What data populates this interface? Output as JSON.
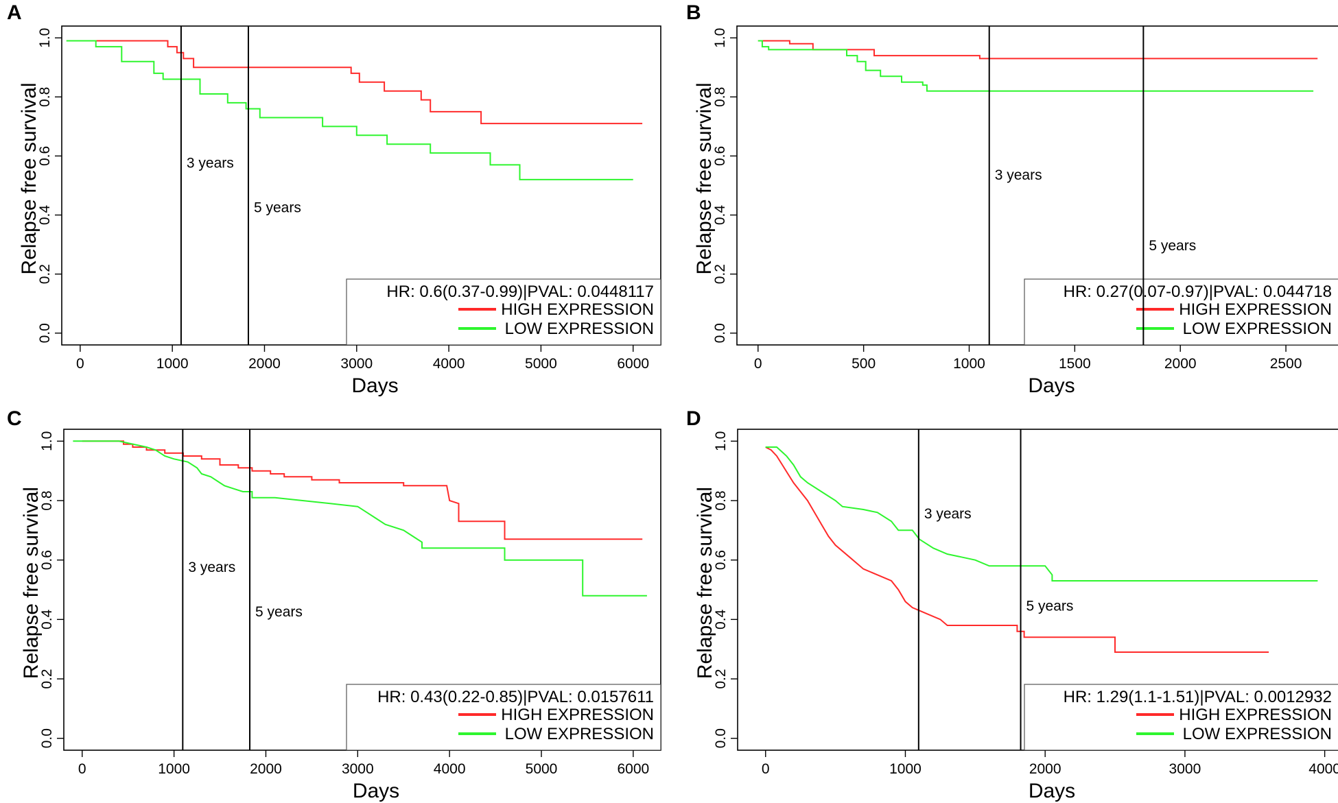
{
  "chart_data": [
    {
      "panel": "A",
      "type": "line",
      "xlabel": "Days",
      "ylabel": "Relapse free survival",
      "xlim": [
        -200,
        6300
      ],
      "ylim": [
        -0.04,
        1.04
      ],
      "xticks": [
        0,
        1000,
        2000,
        3000,
        4000,
        5000,
        6000
      ],
      "yticks": [
        0.0,
        0.2,
        0.4,
        0.6,
        0.8,
        1.0
      ],
      "markers": [
        {
          "x": 1095,
          "label": "3 years",
          "label_y": 0.56
        },
        {
          "x": 1825,
          "label": "5 years",
          "label_y": 0.41
        }
      ],
      "legend": {
        "stat": "HR: 0.6(0.37-0.99)|PVAL: 0.0448117",
        "position": "bottom-right"
      },
      "series": [
        {
          "name": "HIGH EXPRESSION",
          "color": "#ff2a2a",
          "points": [
            [
              0,
              0.99
            ],
            [
              950,
              0.99
            ],
            [
              950,
              0.97
            ],
            [
              1050,
              0.97
            ],
            [
              1050,
              0.95
            ],
            [
              1120,
              0.95
            ],
            [
              1120,
              0.93
            ],
            [
              1230,
              0.93
            ],
            [
              1230,
              0.9
            ],
            [
              2940,
              0.9
            ],
            [
              2940,
              0.88
            ],
            [
              3030,
              0.88
            ],
            [
              3030,
              0.85
            ],
            [
              3300,
              0.85
            ],
            [
              3300,
              0.82
            ],
            [
              3700,
              0.82
            ],
            [
              3700,
              0.79
            ],
            [
              3800,
              0.79
            ],
            [
              3800,
              0.75
            ],
            [
              4350,
              0.75
            ],
            [
              4350,
              0.71
            ],
            [
              6100,
              0.71
            ]
          ]
        },
        {
          "name": "LOW EXPRESSION",
          "color": "#2ef52e",
          "points": [
            [
              -150,
              0.99
            ],
            [
              170,
              0.99
            ],
            [
              170,
              0.97
            ],
            [
              450,
              0.97
            ],
            [
              450,
              0.92
            ],
            [
              800,
              0.92
            ],
            [
              800,
              0.88
            ],
            [
              900,
              0.88
            ],
            [
              900,
              0.86
            ],
            [
              1300,
              0.86
            ],
            [
              1300,
              0.81
            ],
            [
              1600,
              0.81
            ],
            [
              1600,
              0.78
            ],
            [
              1800,
              0.78
            ],
            [
              1800,
              0.76
            ],
            [
              1950,
              0.76
            ],
            [
              1950,
              0.73
            ],
            [
              2630,
              0.73
            ],
            [
              2630,
              0.7
            ],
            [
              3000,
              0.7
            ],
            [
              3000,
              0.67
            ],
            [
              3330,
              0.67
            ],
            [
              3330,
              0.64
            ],
            [
              3800,
              0.64
            ],
            [
              3800,
              0.61
            ],
            [
              4450,
              0.61
            ],
            [
              4450,
              0.57
            ],
            [
              4770,
              0.57
            ],
            [
              4770,
              0.52
            ],
            [
              6000,
              0.52
            ]
          ]
        }
      ]
    },
    {
      "panel": "B",
      "type": "line",
      "xlabel": "Days",
      "ylabel": "Relapse free survival",
      "xlim": [
        -100,
        2750
      ],
      "ylim": [
        -0.04,
        1.04
      ],
      "xticks": [
        0,
        500,
        1000,
        1500,
        2000,
        2500
      ],
      "yticks": [
        0.0,
        0.2,
        0.4,
        0.6,
        0.8,
        1.0
      ],
      "markers": [
        {
          "x": 1095,
          "label": "3 years",
          "label_y": 0.52
        },
        {
          "x": 1825,
          "label": "5 years",
          "label_y": 0.28
        }
      ],
      "legend": {
        "stat": "HR: 0.27(0.07-0.97)|PVAL: 0.044718",
        "position": "bottom-right"
      },
      "series": [
        {
          "name": "HIGH EXPRESSION",
          "color": "#ff2a2a",
          "points": [
            [
              0,
              0.99
            ],
            [
              150,
              0.99
            ],
            [
              150,
              0.98
            ],
            [
              260,
              0.98
            ],
            [
              260,
              0.96
            ],
            [
              550,
              0.96
            ],
            [
              550,
              0.94
            ],
            [
              1050,
              0.94
            ],
            [
              1050,
              0.93
            ],
            [
              2650,
              0.93
            ]
          ]
        },
        {
          "name": "LOW EXPRESSION",
          "color": "#2ef52e",
          "points": [
            [
              0,
              0.99
            ],
            [
              20,
              0.99
            ],
            [
              20,
              0.97
            ],
            [
              50,
              0.97
            ],
            [
              50,
              0.96
            ],
            [
              420,
              0.96
            ],
            [
              420,
              0.94
            ],
            [
              470,
              0.94
            ],
            [
              470,
              0.92
            ],
            [
              510,
              0.92
            ],
            [
              510,
              0.89
            ],
            [
              580,
              0.89
            ],
            [
              580,
              0.87
            ],
            [
              680,
              0.87
            ],
            [
              680,
              0.85
            ],
            [
              780,
              0.85
            ],
            [
              780,
              0.84
            ],
            [
              800,
              0.84
            ],
            [
              800,
              0.82
            ],
            [
              2630,
              0.82
            ]
          ]
        }
      ]
    },
    {
      "panel": "C",
      "type": "line",
      "xlabel": "Days",
      "ylabel": "Relapse free survival",
      "xlim": [
        -200,
        6300
      ],
      "ylim": [
        -0.04,
        1.04
      ],
      "xticks": [
        0,
        1000,
        2000,
        3000,
        4000,
        5000,
        6000
      ],
      "yticks": [
        0.0,
        0.2,
        0.4,
        0.6,
        0.8,
        1.0
      ],
      "markers": [
        {
          "x": 1095,
          "label": "3 years",
          "label_y": 0.56
        },
        {
          "x": 1825,
          "label": "5 years",
          "label_y": 0.41
        }
      ],
      "legend": {
        "stat": "HR: 0.43(0.22-0.85)|PVAL: 0.0157611",
        "position": "bottom-right"
      },
      "series": [
        {
          "name": "HIGH EXPRESSION",
          "color": "#ff2a2a",
          "points": [
            [
              0,
              1.0
            ],
            [
              450,
              1.0
            ],
            [
              450,
              0.99
            ],
            [
              550,
              0.99
            ],
            [
              550,
              0.98
            ],
            [
              700,
              0.98
            ],
            [
              700,
              0.97
            ],
            [
              900,
              0.97
            ],
            [
              900,
              0.96
            ],
            [
              1100,
              0.96
            ],
            [
              1100,
              0.95
            ],
            [
              1300,
              0.95
            ],
            [
              1300,
              0.94
            ],
            [
              1500,
              0.94
            ],
            [
              1500,
              0.92
            ],
            [
              1700,
              0.92
            ],
            [
              1700,
              0.91
            ],
            [
              1850,
              0.91
            ],
            [
              1850,
              0.9
            ],
            [
              2050,
              0.9
            ],
            [
              2050,
              0.89
            ],
            [
              2200,
              0.89
            ],
            [
              2200,
              0.88
            ],
            [
              2500,
              0.88
            ],
            [
              2500,
              0.87
            ],
            [
              2800,
              0.87
            ],
            [
              2800,
              0.86
            ],
            [
              3500,
              0.86
            ],
            [
              3500,
              0.85
            ],
            [
              3970,
              0.85
            ],
            [
              4000,
              0.8
            ],
            [
              4100,
              0.79
            ],
            [
              4100,
              0.73
            ],
            [
              4600,
              0.73
            ],
            [
              4600,
              0.67
            ],
            [
              6100,
              0.67
            ]
          ]
        },
        {
          "name": "LOW EXPRESSION",
          "color": "#2ef52e",
          "points": [
            [
              -100,
              1.0
            ],
            [
              400,
              1.0
            ],
            [
              700,
              0.98
            ],
            [
              800,
              0.97
            ],
            [
              900,
              0.95
            ],
            [
              1000,
              0.94
            ],
            [
              1150,
              0.93
            ],
            [
              1250,
              0.91
            ],
            [
              1300,
              0.89
            ],
            [
              1400,
              0.88
            ],
            [
              1500,
              0.86
            ],
            [
              1550,
              0.85
            ],
            [
              1650,
              0.84
            ],
            [
              1750,
              0.83
            ],
            [
              1850,
              0.83
            ],
            [
              1850,
              0.81
            ],
            [
              2100,
              0.81
            ],
            [
              2400,
              0.8
            ],
            [
              2700,
              0.79
            ],
            [
              3000,
              0.78
            ],
            [
              3100,
              0.76
            ],
            [
              3200,
              0.74
            ],
            [
              3300,
              0.72
            ],
            [
              3500,
              0.7
            ],
            [
              3600,
              0.68
            ],
            [
              3700,
              0.66
            ],
            [
              3700,
              0.64
            ],
            [
              4600,
              0.64
            ],
            [
              4600,
              0.6
            ],
            [
              5450,
              0.6
            ],
            [
              5450,
              0.48
            ],
            [
              6150,
              0.48
            ]
          ]
        }
      ]
    },
    {
      "panel": "D",
      "type": "line",
      "xlabel": "Days",
      "ylabel": "Relapse free survival",
      "xlim": [
        -200,
        4100
      ],
      "ylim": [
        -0.04,
        1.04
      ],
      "xticks": [
        0,
        1000,
        2000,
        3000,
        4000
      ],
      "yticks": [
        0.0,
        0.2,
        0.4,
        0.6,
        0.8,
        1.0
      ],
      "markers": [
        {
          "x": 1095,
          "label": "3 years",
          "label_y": 0.74
        },
        {
          "x": 1825,
          "label": "5 years",
          "label_y": 0.43
        }
      ],
      "legend": {
        "stat": "HR: 1.29(1.1-1.51)|PVAL: 0.0012932",
        "position": "bottom-right"
      },
      "series": [
        {
          "name": "HIGH EXPRESSION",
          "color": "#ff2a2a",
          "points": [
            [
              0,
              0.98
            ],
            [
              40,
              0.97
            ],
            [
              80,
              0.95
            ],
            [
              120,
              0.92
            ],
            [
              160,
              0.89
            ],
            [
              200,
              0.86
            ],
            [
              250,
              0.83
            ],
            [
              300,
              0.8
            ],
            [
              350,
              0.76
            ],
            [
              400,
              0.72
            ],
            [
              450,
              0.68
            ],
            [
              500,
              0.65
            ],
            [
              600,
              0.61
            ],
            [
              700,
              0.57
            ],
            [
              800,
              0.55
            ],
            [
              900,
              0.53
            ],
            [
              950,
              0.5
            ],
            [
              1000,
              0.46
            ],
            [
              1050,
              0.44
            ],
            [
              1150,
              0.42
            ],
            [
              1250,
              0.4
            ],
            [
              1300,
              0.38
            ],
            [
              1800,
              0.38
            ],
            [
              1800,
              0.36
            ],
            [
              1850,
              0.36
            ],
            [
              1850,
              0.34
            ],
            [
              2500,
              0.34
            ],
            [
              2500,
              0.29
            ],
            [
              3600,
              0.29
            ]
          ]
        },
        {
          "name": "LOW EXPRESSION",
          "color": "#2ef52e",
          "points": [
            [
              0,
              0.98
            ],
            [
              80,
              0.98
            ],
            [
              150,
              0.95
            ],
            [
              200,
              0.92
            ],
            [
              250,
              0.88
            ],
            [
              300,
              0.86
            ],
            [
              400,
              0.83
            ],
            [
              500,
              0.8
            ],
            [
              550,
              0.78
            ],
            [
              700,
              0.77
            ],
            [
              800,
              0.76
            ],
            [
              900,
              0.73
            ],
            [
              950,
              0.7
            ],
            [
              1050,
              0.7
            ],
            [
              1100,
              0.67
            ],
            [
              1200,
              0.64
            ],
            [
              1300,
              0.62
            ],
            [
              1400,
              0.61
            ],
            [
              1500,
              0.6
            ],
            [
              1600,
              0.58
            ],
            [
              2000,
              0.58
            ],
            [
              2050,
              0.55
            ],
            [
              2050,
              0.53
            ],
            [
              3950,
              0.53
            ]
          ]
        }
      ]
    }
  ]
}
